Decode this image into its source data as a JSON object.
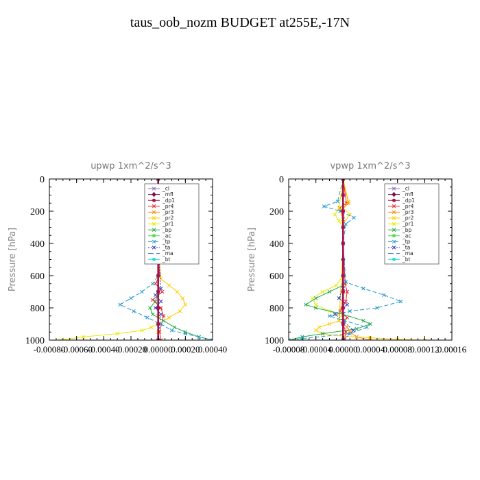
{
  "title": "taus_oob_nozm  BUDGET at255E,-17N",
  "chart_data": [
    {
      "type": "line",
      "title": "upwp   1xm^2/s^3",
      "ylabel": "Pressure [hPa]",
      "xlim": [
        -0.0008,
        0.0004
      ],
      "ylim": [
        1000,
        0
      ],
      "x_ticks": [
        -0.0008,
        -0.0006,
        -0.0004,
        -0.0002,
        0.0,
        0.0002,
        0.0004
      ],
      "x_tick_labels": [
        "-0.00080",
        "-0.00060",
        "-0.00040",
        "-0.00020",
        "0.00000",
        "0.00020",
        "0.00040"
      ],
      "y_ticks": [
        0,
        200,
        400,
        600,
        800,
        1000
      ],
      "y_tick_labels": [
        "0",
        "200",
        "400",
        "600",
        "800",
        "1000"
      ],
      "legend": [
        "_cl",
        "_mfl",
        "_dp1",
        "_pr4",
        "_pr3",
        "_pr2",
        "_pr1",
        "_bp",
        "_ac",
        "_tp",
        "_ta",
        "_ma",
        "_bt"
      ],
      "series": [
        {
          "name": "_cl",
          "color": "#9966cc",
          "marker": "x",
          "dash": "",
          "x": [
            0,
            0,
            0,
            0,
            0,
            0,
            0,
            0,
            0,
            0,
            0
          ],
          "y": [
            0,
            100,
            200,
            300,
            400,
            500,
            600,
            700,
            800,
            900,
            1000
          ]
        },
        {
          "name": "_mfl",
          "color": "#7a0a4a",
          "marker": "diamond",
          "dash": "",
          "x": [
            0,
            0,
            0,
            0,
            0,
            0,
            0,
            0,
            0,
            0,
            0
          ],
          "y": [
            0,
            100,
            200,
            300,
            400,
            500,
            600,
            700,
            800,
            900,
            1000
          ]
        },
        {
          "name": "_dp1",
          "color": "#aa1144",
          "marker": "circle",
          "dash": "",
          "x": [
            0,
            0,
            0,
            0,
            0,
            0,
            0,
            0,
            0,
            0,
            0
          ],
          "y": [
            0,
            100,
            200,
            300,
            400,
            500,
            600,
            700,
            800,
            900,
            1000
          ]
        },
        {
          "name": "_pr4",
          "color": "#ee2222",
          "marker": "x",
          "dash": "",
          "x": [
            0,
            0,
            0,
            1e-05,
            -2e-05,
            3e-05,
            -4e-05,
            2e-05,
            4e-05,
            1e-05,
            2e-05
          ],
          "y": [
            0,
            200,
            400,
            600,
            650,
            700,
            750,
            800,
            850,
            950,
            1000
          ]
        },
        {
          "name": "_pr3",
          "color": "#ff8800",
          "marker": "x",
          "dash": "",
          "x": [
            0,
            0,
            0,
            0,
            0,
            0,
            0,
            0,
            0,
            0
          ],
          "y": [
            0,
            200,
            400,
            600,
            700,
            800,
            850,
            900,
            950,
            1000
          ]
        },
        {
          "name": "_pr2",
          "color": "#ffcc00",
          "marker": "x",
          "dash": "",
          "x": [
            0,
            0,
            0,
            2e-05,
            8e-05,
            0.00014,
            0.00018,
            0.0002,
            0.00016,
            8e-05,
            0,
            0,
            0
          ],
          "y": [
            0,
            200,
            400,
            620,
            660,
            700,
            740,
            780,
            820,
            860,
            900,
            950,
            1000
          ]
        },
        {
          "name": "_pr1",
          "color": "#e8e800",
          "marker": "x",
          "dash": "",
          "x": [
            0,
            0,
            0,
            0,
            0,
            -5e-05,
            -0.00012,
            -0.0003,
            -0.00055,
            -0.00072
          ],
          "y": [
            0,
            200,
            400,
            700,
            900,
            920,
            940,
            960,
            980,
            1000
          ]
        },
        {
          "name": "_bp",
          "color": "#22aa44",
          "marker": "x",
          "dash": "",
          "x": [
            0,
            0,
            0,
            0,
            -2e-05,
            -6e-05,
            -4e-05,
            4e-05,
            0.00012,
            0.0002,
            0.0003,
            0.0004
          ],
          "y": [
            0,
            200,
            400,
            700,
            760,
            800,
            840,
            880,
            920,
            950,
            980,
            1000
          ]
        },
        {
          "name": "_ac",
          "color": "#55dd55",
          "marker": "circle",
          "dash": "",
          "x": [
            0,
            0,
            0,
            0,
            0,
            0,
            0
          ],
          "y": [
            0,
            200,
            400,
            600,
            800,
            900,
            1000
          ]
        },
        {
          "name": "_tp",
          "color": "#2299cc",
          "marker": "x",
          "dash": "6,3",
          "x": [
            0,
            -2e-05,
            0,
            0,
            0,
            -4e-05,
            -0.00012,
            -0.0002,
            -0.00028,
            -0.00018,
            -8e-05,
            2e-05,
            0.0001,
            0.0002,
            0.0003,
            0.0004
          ],
          "y": [
            0,
            180,
            200,
            400,
            600,
            650,
            700,
            740,
            780,
            820,
            860,
            900,
            940,
            960,
            980,
            1000
          ]
        },
        {
          "name": "_ta",
          "color": "#2233cc",
          "marker": "x",
          "dash": "2,2",
          "x": [
            0,
            0,
            0,
            2e-05,
            -2e-05,
            2e-05,
            -2e-05,
            2e-05,
            0
          ],
          "y": [
            0,
            200,
            400,
            680,
            720,
            760,
            800,
            840,
            1000
          ]
        },
        {
          "name": "_ma",
          "color": "#3366bb",
          "marker": "none",
          "dash": "8,4",
          "x": [
            0,
            0,
            0,
            0,
            0,
            0
          ],
          "y": [
            0,
            200,
            400,
            600,
            800,
            1000
          ]
        },
        {
          "name": "_bt",
          "color": "#22dddd",
          "marker": "circle",
          "dash": "",
          "x": [
            0,
            0,
            0,
            0,
            0,
            0
          ],
          "y": [
            0,
            200,
            400,
            600,
            800,
            1000
          ]
        }
      ]
    },
    {
      "type": "line",
      "title": "vpwp   1xm^2/s^3",
      "ylabel": "Pressure [hPa]",
      "xlim": [
        -8e-05,
        0.00016
      ],
      "ylim": [
        1000,
        0
      ],
      "x_ticks": [
        -8e-05,
        -4e-05,
        0.0,
        4e-05,
        8e-05,
        0.00012,
        0.00016
      ],
      "x_tick_labels": [
        "-0.00008",
        "-0.00004",
        "0.00000",
        "0.00004",
        "0.00008",
        "0.00012",
        "0.00016"
      ],
      "y_ticks": [
        0,
        200,
        400,
        600,
        800,
        1000
      ],
      "y_tick_labels": [
        "0",
        "200",
        "400",
        "600",
        "800",
        "1000"
      ],
      "legend": [
        "_cl",
        "_mfl",
        "_dp1",
        "_pr4",
        "_pr3",
        "_pr2",
        "_pr1",
        "_bp",
        "_ac",
        "_tp",
        "_ta",
        "_ma",
        "_bt"
      ],
      "series": [
        {
          "name": "_cl",
          "color": "#9966cc",
          "marker": "x",
          "dash": "",
          "x": [
            0,
            0,
            0,
            0,
            0,
            0,
            0,
            0,
            0,
            0,
            0
          ],
          "y": [
            0,
            100,
            200,
            300,
            400,
            500,
            600,
            700,
            800,
            900,
            1000
          ]
        },
        {
          "name": "_mfl",
          "color": "#7a0a4a",
          "marker": "diamond",
          "dash": "",
          "x": [
            0,
            0,
            0,
            0,
            0,
            0,
            0,
            0,
            0,
            0,
            0
          ],
          "y": [
            0,
            100,
            200,
            300,
            400,
            500,
            600,
            700,
            800,
            900,
            1000
          ]
        },
        {
          "name": "_dp1",
          "color": "#aa1144",
          "marker": "circle",
          "dash": "",
          "x": [
            0,
            0,
            0,
            0,
            0,
            0,
            0,
            0,
            0,
            0,
            0
          ],
          "y": [
            0,
            100,
            200,
            300,
            400,
            500,
            600,
            700,
            800,
            900,
            1000
          ]
        },
        {
          "name": "_pr4",
          "color": "#ee2222",
          "marker": "x",
          "dash": "",
          "x": [
            0,
            5e-06,
            -5e-06,
            0,
            0,
            3e-06,
            6e-06,
            4e-06,
            -4e-06,
            6e-06,
            0,
            4e-06,
            2e-06
          ],
          "y": [
            0,
            150,
            180,
            250,
            400,
            650,
            700,
            760,
            820,
            860,
            900,
            950,
            1000
          ]
        },
        {
          "name": "_pr3",
          "color": "#ff8800",
          "marker": "x",
          "dash": "",
          "x": [
            0,
            8e-06,
            -4e-06,
            0,
            0,
            0,
            -6e-06,
            6e-06,
            1e-05,
            2e-05,
            4e-05
          ],
          "y": [
            0,
            150,
            200,
            250,
            400,
            700,
            880,
            920,
            950,
            980,
            1000
          ]
        },
        {
          "name": "_pr2",
          "color": "#ffcc00",
          "marker": "x",
          "dash": "",
          "x": [
            0,
            8e-06,
            0,
            1e-05,
            0,
            0,
            -6e-06,
            -2e-05,
            -3.5e-05,
            -4e-05,
            -3e-05,
            0,
            4e-05,
            8e-05,
            0.00012
          ],
          "y": [
            0,
            140,
            180,
            220,
            280,
            400,
            880,
            900,
            920,
            940,
            960,
            975,
            985,
            995,
            1000
          ]
        },
        {
          "name": "_pr1",
          "color": "#e8e800",
          "marker": "x",
          "dash": "",
          "x": [
            0,
            -6e-06,
            -1.2e-05,
            -6e-06,
            0,
            0,
            -1e-05,
            -3e-05,
            -4.5e-05,
            -4e-05,
            -2e-05,
            0
          ],
          "y": [
            0,
            180,
            220,
            260,
            300,
            600,
            660,
            700,
            740,
            780,
            820,
            860
          ]
        },
        {
          "name": "_bp",
          "color": "#22aa44",
          "marker": "x",
          "dash": "",
          "x": [
            0,
            0,
            0,
            -2e-05,
            -4e-05,
            -5.5e-05,
            -4e-05,
            0,
            3e-05,
            4e-05,
            2e-05,
            -3e-05,
            -6e-05,
            -8e-05
          ],
          "y": [
            0,
            400,
            660,
            700,
            740,
            780,
            800,
            840,
            880,
            900,
            930,
            960,
            980,
            1000
          ]
        },
        {
          "name": "_ac",
          "color": "#55dd55",
          "marker": "circle",
          "dash": "",
          "x": [
            0,
            0,
            0,
            0,
            0,
            0,
            0
          ],
          "y": [
            0,
            200,
            400,
            600,
            800,
            900,
            1000
          ]
        },
        {
          "name": "_tp",
          "color": "#2299cc",
          "marker": "x",
          "dash": "6,3",
          "x": [
            0,
            -8e-06,
            -2.8e-05,
            -4e-06,
            1.6e-05,
            4e-06,
            0,
            4e-06,
            3e-05,
            6e-05,
            8.5e-05,
            5e-05,
            1e-05,
            -2e-05,
            2e-06,
            3.5e-05,
            1e-05,
            -6e-05,
            -8e-05
          ],
          "y": [
            0,
            140,
            170,
            200,
            240,
            280,
            400,
            640,
            680,
            720,
            760,
            800,
            820,
            850,
            880,
            920,
            960,
            990,
            1000
          ]
        },
        {
          "name": "_ta",
          "color": "#2233cc",
          "marker": "x",
          "dash": "2,2",
          "x": [
            0,
            0,
            0,
            -6e-06,
            6e-06,
            -1.2e-05,
            0,
            1.5e-05,
            0
          ],
          "y": [
            0,
            400,
            680,
            740,
            780,
            840,
            880,
            940,
            1000
          ]
        },
        {
          "name": "_ma",
          "color": "#3366bb",
          "marker": "none",
          "dash": "8,4",
          "x": [
            0,
            0,
            0,
            0,
            0,
            0
          ],
          "y": [
            0,
            200,
            400,
            600,
            800,
            1000
          ]
        },
        {
          "name": "_bt",
          "color": "#22dddd",
          "marker": "circle",
          "dash": "",
          "x": [
            0,
            0,
            0,
            0,
            0,
            0
          ],
          "y": [
            0,
            200,
            400,
            600,
            800,
            1000
          ]
        }
      ]
    }
  ]
}
